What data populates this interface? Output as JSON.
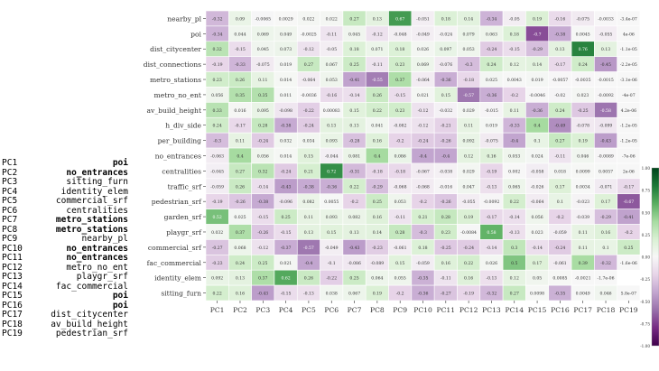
{
  "pc_list": [
    {
      "pc": "PC1",
      "variable": "poi",
      "bold": true
    },
    {
      "pc": "PC2",
      "variable": "no_entrances",
      "bold": true
    },
    {
      "pc": "PC3",
      "variable": "sitting_furn",
      "bold": false
    },
    {
      "pc": "PC4",
      "variable": "identity_elem",
      "bold": false
    },
    {
      "pc": "PC5",
      "variable": "commercial_srf",
      "bold": false
    },
    {
      "pc": "PC6",
      "variable": "centralities",
      "bold": false
    },
    {
      "pc": "PC7",
      "variable": "metro_stations",
      "bold": true
    },
    {
      "pc": "PC8",
      "variable": "metro_stations",
      "bold": true
    },
    {
      "pc": "PC9",
      "variable": "nearby_pl",
      "bold": false
    },
    {
      "pc": "PC10",
      "variable": "no_entrances",
      "bold": true
    },
    {
      "pc": "PC11",
      "variable": "no_entrances",
      "bold": true
    },
    {
      "pc": "PC12",
      "variable": "metro_no_ent",
      "bold": false
    },
    {
      "pc": "PC13",
      "variable": "playgr_srf",
      "bold": false
    },
    {
      "pc": "PC14",
      "variable": "fac_commercial",
      "bold": false
    },
    {
      "pc": "PC15",
      "variable": "poi",
      "bold": true
    },
    {
      "pc": "PC16",
      "variable": "poi",
      "bold": true
    },
    {
      "pc": "PC17",
      "variable": "dist_citycenter",
      "bold": false
    },
    {
      "pc": "PC18",
      "variable": "av_build_height",
      "bold": false
    },
    {
      "pc": "PC19",
      "variable": "pedestrian_srf",
      "bold": false
    }
  ],
  "chart_data": {
    "type": "heatmap",
    "x_categories": [
      "PC1",
      "PC2",
      "PC3",
      "PC4",
      "PC5",
      "PC6",
      "PC7",
      "PC8",
      "PC9",
      "PC10",
      "PC11",
      "PC12",
      "PC13",
      "PC14",
      "PC15",
      "PC16",
      "PC17",
      "PC18",
      "PC19"
    ],
    "y_categories": [
      "nearby_pl",
      "poi",
      "dist_citycenter",
      "dist_connections",
      "metro_stations",
      "metro_no_ent",
      "av_build_height",
      "h_div_side",
      "per_building",
      "no_entrances",
      "centralities",
      "traffic_srf",
      "pedestrian_srf",
      "garden_srf",
      "playgr_srf",
      "commercial_srf",
      "fac_commercial",
      "identity_elem",
      "sitting_furn"
    ],
    "values": [
      [
        -0.32,
        0.09,
        -0.0065,
        0.0029,
        0.022,
        0.022,
        0.27,
        0.13,
        0.67,
        -0.051,
        0.18,
        0.14,
        -0.34,
        -0.05,
        0.19,
        -0.16,
        -0.075,
        -0.0033,
        -3.4e-07
      ],
      [
        -0.34,
        0.044,
        0.069,
        0.049,
        -0.0025,
        -0.11,
        0.045,
        -0.12,
        -0.048,
        -0.049,
        -0.024,
        0.079,
        0.063,
        0.18,
        -0.7,
        -0.38,
        0.0045,
        -0.055,
        4e-06
      ],
      [
        0.32,
        -0.15,
        0.045,
        0.073,
        -0.12,
        -0.05,
        0.18,
        0.071,
        0.18,
        0.026,
        0.097,
        0.053,
        -0.24,
        -0.15,
        -0.29,
        0.13,
        0.76,
        0.13,
        -1.1e-05
      ],
      [
        -0.19,
        -0.33,
        -0.075,
        0.019,
        0.27,
        0.067,
        0.25,
        -0.11,
        0.23,
        0.069,
        -0.076,
        -0.3,
        0.24,
        0.12,
        0.14,
        -0.17,
        0.24,
        -0.45,
        -2.2e-05
      ],
      [
        0.23,
        0.26,
        0.11,
        0.014,
        -0.064,
        0.053,
        -0.41,
        -0.55,
        0.37,
        -0.064,
        -0.36,
        -0.18,
        0.025,
        0.0043,
        0.019,
        -0.0057,
        -0.0035,
        -0.0015,
        -3.1e-06
      ],
      [
        0.056,
        0.35,
        0.35,
        0.011,
        -0.0036,
        -0.16,
        -0.14,
        0.26,
        -0.15,
        0.021,
        0.15,
        -0.57,
        -0.36,
        -0.2,
        -0.0046,
        -0.02,
        0.023,
        -0.0092,
        -4e-07
      ],
      [
        0.33,
        0.016,
        0.095,
        -0.098,
        -0.22,
        0.00083,
        0.15,
        0.22,
        0.23,
        -0.12,
        -0.032,
        0.029,
        -0.015,
        0.11,
        -0.36,
        0.24,
        -0.25,
        -0.58,
        4.2e-06
      ],
      [
        0.24,
        -0.17,
        0.28,
        -0.38,
        -0.24,
        0.13,
        0.13,
        0.041,
        -0.082,
        -0.12,
        -0.21,
        0.11,
        0.019,
        -0.33,
        0.4,
        -0.49,
        -0.078,
        -0.099,
        -1.2e-05
      ],
      [
        -0.3,
        0.11,
        -0.24,
        0.032,
        0.034,
        0.093,
        -0.28,
        0.16,
        -0.2,
        -0.24,
        -0.26,
        0.092,
        -0.075,
        -0.4,
        0.1,
        0.27,
        0.19,
        -0.43,
        -1.2e-05
      ],
      [
        -0.063,
        0.4,
        0.056,
        0.014,
        0.15,
        -0.044,
        0.081,
        0.4,
        0.086,
        -0.4,
        -0.4,
        0.12,
        0.16,
        0.053,
        0.024,
        -0.11,
        0.046,
        -0.0089,
        -7e-06
      ],
      [
        -0.045,
        0.27,
        0.32,
        -0.24,
        0.21,
        0.72,
        -0.31,
        -0.18,
        -0.18,
        -0.067,
        -0.038,
        0.029,
        -0.19,
        0.002,
        -0.058,
        0.018,
        0.0099,
        0.0057,
        2e-06
      ],
      [
        -0.059,
        0.26,
        -0.14,
        -0.43,
        -0.38,
        -0.36,
        0.22,
        -0.29,
        -0.068,
        -0.068,
        -0.016,
        0.047,
        -0.13,
        0.065,
        -0.026,
        0.17,
        0.0034,
        -0.071,
        -0.17
      ],
      [
        -0.19,
        -0.26,
        -0.38,
        -0.096,
        0.082,
        0.0055,
        -0.2,
        0.25,
        0.053,
        -0.2,
        -0.26,
        -0.055,
        -0.0092,
        0.22,
        -0.064,
        0.1,
        -0.023,
        0.17,
        -0.67
      ],
      [
        0.52,
        0.025,
        -0.15,
        0.25,
        0.11,
        0.093,
        0.082,
        0.16,
        -0.11,
        0.21,
        0.28,
        0.19,
        -0.17,
        -0.14,
        0.056,
        -0.2,
        -0.039,
        -0.29,
        -0.41
      ],
      [
        0.032,
        0.37,
        -0.26,
        -0.15,
        0.13,
        0.15,
        0.13,
        0.14,
        0.28,
        -0.3,
        0.23,
        -0.0084,
        0.58,
        -0.13,
        0.023,
        -0.059,
        0.11,
        0.16,
        -0.2
      ],
      [
        -0.27,
        0.068,
        -0.12,
        -0.37,
        -0.57,
        -0.049,
        -0.43,
        -0.23,
        -0.061,
        0.18,
        -0.25,
        -0.24,
        -0.14,
        0.3,
        -0.14,
        -0.24,
        0.11,
        0.1,
        0.25
      ],
      [
        -0.23,
        0.24,
        0.25,
        0.021,
        -0.4,
        -0.1,
        -0.086,
        -0.089,
        0.15,
        -0.059,
        0.16,
        0.22,
        0.026,
        0.5,
        0.17,
        -0.061,
        0.39,
        -0.32,
        -1.6e-06
      ],
      [
        0.092,
        0.13,
        0.37,
        0.62,
        0.26,
        -0.22,
        0.25,
        0.064,
        0.055,
        -0.35,
        -0.11,
        0.16,
        -0.13,
        0.12,
        0.05,
        0.0085,
        -0.0021,
        -1.7e-06,
        null
      ],
      [
        0.22,
        0.16,
        -0.43,
        -0.15,
        -0.13,
        0.038,
        0.067,
        0.19,
        -0.2,
        -0.36,
        -0.27,
        -0.19,
        -0.32,
        0.27,
        0.0098,
        -0.35,
        0.0049,
        0.046,
        5.8e-07
      ]
    ],
    "cell_labels": [
      [
        "-0.32",
        "0.09",
        "-0.0065",
        "0.0029",
        "0.022",
        "0.022",
        "0.27",
        "0.13",
        "0.67",
        "-0.051",
        "0.18",
        "0.14",
        "-0.34",
        "-0.05",
        "0.19",
        "-0.16",
        "-0.075",
        "-0.0033",
        "-3.4e-07"
      ],
      [
        "-0.34",
        "0.044",
        "0.069",
        "0.049",
        "-0.0025",
        "-0.11",
        "0.045",
        "-0.12",
        "-0.048",
        "-0.049",
        "-0.024",
        "0.079",
        "0.063",
        "0.18",
        "-0.7",
        "-0.38",
        "0.0045",
        "-0.055",
        "4e-06"
      ],
      [
        "0.32",
        "-0.15",
        "0.045",
        "0.073",
        "-0.12",
        "-0.05",
        "0.18",
        "0.071",
        "0.18",
        "0.026",
        "0.097",
        "0.053",
        "-0.24",
        "-0.15",
        "-0.29",
        "0.13",
        "0.76",
        "0.13",
        "-1.1e-05"
      ],
      [
        "-0.19",
        "-0.33",
        "-0.075",
        "0.019",
        "0.27",
        "0.067",
        "0.25",
        "-0.11",
        "0.23",
        "0.069",
        "-0.076",
        "-0.3",
        "0.24",
        "0.12",
        "0.14",
        "-0.17",
        "0.24",
        "-0.45",
        "-2.2e-05"
      ],
      [
        "0.23",
        "0.26",
        "0.11",
        "0.014",
        "-0.064",
        "0.053",
        "-0.41",
        "-0.55",
        "0.37",
        "-0.064",
        "-0.36",
        "-0.18",
        "0.025",
        "0.0043",
        "0.019",
        "-0.0057",
        "-0.0035",
        "-0.0015",
        "-3.1e-06"
      ],
      [
        "0.056",
        "0.35",
        "0.35",
        "0.011",
        "-0.0036",
        "-0.16",
        "-0.14",
        "0.26",
        "-0.15",
        "0.021",
        "0.15",
        "-0.57",
        "-0.36",
        "-0.2",
        "-0.0046",
        "-0.02",
        "0.023",
        "-0.0092",
        "-4e-07"
      ],
      [
        "0.33",
        "0.016",
        "0.095",
        "-0.098",
        "-0.22",
        "0.00083",
        "0.15",
        "0.22",
        "0.23",
        "-0.12",
        "-0.032",
        "0.029",
        "-0.015",
        "0.11",
        "-0.36",
        "0.24",
        "-0.25",
        "-0.58",
        "4.2e-06"
      ],
      [
        "0.24",
        "-0.17",
        "0.28",
        "-0.38",
        "-0.24",
        "0.13",
        "0.13",
        "0.041",
        "-0.082",
        "-0.12",
        "-0.21",
        "0.11",
        "0.019",
        "-0.33",
        "0.4",
        "-0.49",
        "-0.078",
        "-0.099",
        "-1.2e-05"
      ],
      [
        "-0.3",
        "0.11",
        "-0.24",
        "0.032",
        "0.034",
        "0.093",
        "-0.28",
        "0.16",
        "-0.2",
        "-0.24",
        "-0.26",
        "0.092",
        "-0.075",
        "-0.4",
        "0.1",
        "0.27",
        "0.19",
        "-0.43",
        "-1.2e-05"
      ],
      [
        "-0.063",
        "0.4",
        "0.056",
        "0.014",
        "0.15",
        "-0.044",
        "0.081",
        "0.4",
        "0.086",
        "-0.4",
        "-0.4",
        "0.12",
        "0.16",
        "0.053",
        "0.024",
        "-0.11",
        "0.046",
        "-0.0089",
        "-7e-06"
      ],
      [
        "-0.045",
        "0.27",
        "0.32",
        "-0.24",
        "0.21",
        "0.72",
        "-0.31",
        "-0.18",
        "-0.18",
        "-0.067",
        "-0.038",
        "0.029",
        "-0.19",
        "0.002",
        "-0.058",
        "0.018",
        "0.0099",
        "0.0057",
        "2e-06"
      ],
      [
        "-0.059",
        "0.26",
        "-0.14",
        "-0.43",
        "-0.38",
        "-0.36",
        "0.22",
        "-0.29",
        "-0.068",
        "-0.068",
        "-0.016",
        "0.047",
        "-0.13",
        "0.065",
        "-0.026",
        "0.17",
        "0.0034",
        "-0.071",
        "-0.17"
      ],
      [
        "-0.19",
        "-0.26",
        "-0.38",
        "-0.096",
        "0.082",
        "0.0055",
        "-0.2",
        "0.25",
        "0.053",
        "-0.2",
        "-0.26",
        "-0.055",
        "-0.0092",
        "0.22",
        "-0.064",
        "0.1",
        "-0.023",
        "0.17",
        "-0.67"
      ],
      [
        "0.52",
        "0.025",
        "-0.15",
        "0.25",
        "0.11",
        "0.093",
        "0.082",
        "0.16",
        "-0.11",
        "0.21",
        "0.28",
        "0.19",
        "-0.17",
        "-0.14",
        "0.056",
        "-0.2",
        "-0.039",
        "-0.29",
        "-0.41"
      ],
      [
        "0.032",
        "0.37",
        "-0.26",
        "-0.15",
        "0.13",
        "0.15",
        "0.13",
        "0.14",
        "0.28",
        "-0.3",
        "0.23",
        "-0.0084",
        "0.58",
        "-0.13",
        "0.023",
        "-0.059",
        "0.11",
        "0.16",
        "-0.2"
      ],
      [
        "-0.27",
        "0.068",
        "-0.12",
        "-0.37",
        "-0.57",
        "-0.049",
        "-0.43",
        "-0.23",
        "-0.061",
        "0.18",
        "-0.25",
        "-0.24",
        "-0.14",
        "0.3",
        "-0.14",
        "-0.24",
        "0.11",
        "0.1",
        "0.25"
      ],
      [
        "-0.23",
        "0.24",
        "0.25",
        "0.021",
        "-0.4",
        "-0.1",
        "-0.086",
        "-0.089",
        "0.15",
        "-0.059",
        "0.16",
        "0.22",
        "0.026",
        "0.5",
        "0.17",
        "-0.061",
        "0.39",
        "-0.32",
        "-1.6e-06"
      ],
      [
        "0.092",
        "0.13",
        "0.37",
        "0.62",
        "0.26",
        "-0.22",
        "0.25",
        "0.064",
        "0.055",
        "-0.35",
        "-0.11",
        "0.16",
        "-0.13",
        "0.12",
        "0.05",
        "0.0085",
        "-0.0021",
        "-1.7e-06",
        ""
      ],
      [
        "0.22",
        "0.16",
        "-0.43",
        "-0.15",
        "-0.13",
        "0.038",
        "0.067",
        "0.19",
        "-0.2",
        "-0.36",
        "-0.27",
        "-0.19",
        "-0.32",
        "0.27",
        "0.0098",
        "-0.35",
        "0.0049",
        "0.046",
        "5.8e-07"
      ]
    ],
    "color_range": [
      -1,
      1
    ],
    "colorbar_ticks": [
      {
        "value": 1,
        "label": "1.00"
      },
      {
        "value": 0.75,
        "label": "0.75"
      },
      {
        "value": 0.5,
        "label": "0.50"
      },
      {
        "value": 0.25,
        "label": "0.25"
      },
      {
        "value": 0,
        "label": "0.00"
      },
      {
        "value": -0.25,
        "label": "-0.25"
      },
      {
        "value": -0.5,
        "label": "-0.50"
      },
      {
        "value": -0.75,
        "label": "-0.75"
      },
      {
        "value": -1,
        "label": "-1.00"
      }
    ],
    "colors": {
      "negative": "#40004b",
      "zero": "#f7f7f7",
      "positive": "#00441b"
    },
    "title": "",
    "xlabel": "",
    "ylabel": ""
  }
}
